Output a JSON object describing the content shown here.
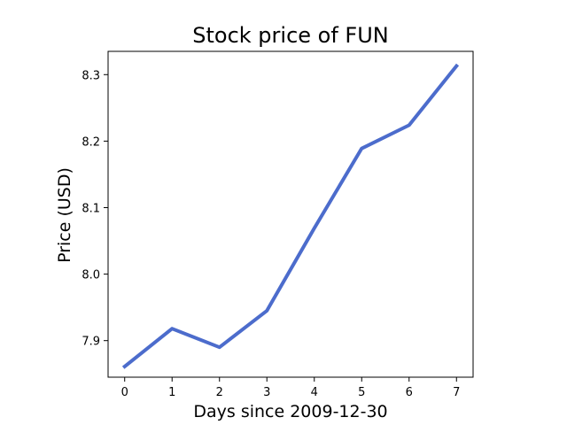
{
  "chart_data": {
    "type": "line",
    "title": "Stock price of FUN",
    "xlabel": "Days since 2009-12-30",
    "ylabel": "Price (USD)",
    "xlim": [
      -0.35,
      7.35
    ],
    "ylim": [
      7.845,
      8.335
    ],
    "xticks": [
      0,
      1,
      2,
      3,
      4,
      5,
      6,
      7
    ],
    "xtick_labels": [
      "0",
      "1",
      "2",
      "3",
      "4",
      "5",
      "6",
      "7"
    ],
    "yticks": [
      7.9,
      8.0,
      8.1,
      8.2,
      8.3
    ],
    "ytick_labels": [
      "7.9",
      "8.0",
      "8.1",
      "8.2",
      "8.3"
    ],
    "grid": false,
    "series": [
      {
        "color": "#4c6ccc",
        "x": [
          0,
          1,
          2,
          3,
          4,
          5,
          6,
          7
        ],
        "y": [
          7.861,
          7.918,
          7.89,
          7.945,
          8.069,
          8.189,
          8.224,
          8.313
        ]
      }
    ]
  }
}
